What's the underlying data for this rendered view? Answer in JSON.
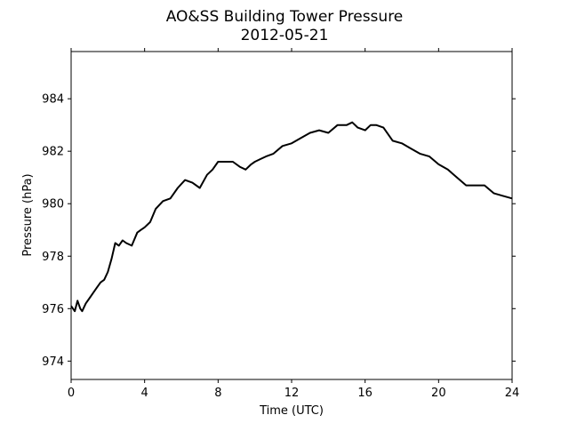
{
  "chart_data": {
    "type": "line",
    "title": "AO&SS Building Tower Pressure",
    "subtitle": "2012-05-21",
    "xlabel": "Time (UTC)",
    "ylabel": "Pressure (hPa)",
    "xlim": [
      0,
      24
    ],
    "ylim": [
      973.3,
      985.8
    ],
    "xticks": [
      0,
      4,
      8,
      12,
      16,
      20,
      24
    ],
    "yticks": [
      974,
      976,
      978,
      980,
      982,
      984
    ],
    "grid": false,
    "legend": "none",
    "line_color": "#000000",
    "series": [
      {
        "x": [
          0.0,
          0.2,
          0.35,
          0.5,
          0.6,
          0.8,
          1.0,
          1.2,
          1.4,
          1.6,
          1.8,
          2.0,
          2.2,
          2.4,
          2.6,
          2.8,
          3.0,
          3.3,
          3.6,
          3.8,
          4.0,
          4.3,
          4.6,
          5.0,
          5.4,
          5.8,
          6.2,
          6.6,
          7.0,
          7.4,
          7.7,
          8.0,
          8.4,
          8.8,
          9.2,
          9.5,
          9.8,
          10.0,
          10.3,
          10.6,
          11.0,
          11.5,
          12.0,
          12.5,
          13.0,
          13.5,
          14.0,
          14.5,
          15.0,
          15.3,
          15.6,
          16.0,
          16.3,
          16.6,
          17.0,
          17.5,
          18.0,
          18.5,
          19.0,
          19.5,
          20.0,
          20.5,
          21.0,
          21.5,
          22.0,
          22.5,
          23.0,
          23.5,
          24.0
        ],
        "values": [
          976.1,
          975.9,
          976.3,
          976.0,
          975.9,
          976.2,
          976.4,
          976.6,
          976.8,
          977.0,
          977.1,
          977.4,
          977.9,
          978.5,
          978.4,
          978.6,
          978.5,
          978.4,
          978.9,
          979.0,
          979.1,
          979.3,
          979.8,
          980.1,
          980.2,
          980.6,
          980.9,
          980.8,
          980.6,
          981.1,
          981.3,
          981.6,
          981.6,
          981.6,
          981.4,
          981.3,
          981.5,
          981.6,
          981.7,
          981.8,
          981.9,
          982.2,
          982.3,
          982.5,
          982.7,
          982.8,
          982.7,
          983.0,
          983.0,
          983.1,
          982.9,
          982.8,
          983.0,
          983.0,
          982.9,
          982.4,
          982.3,
          982.1,
          981.9,
          981.8,
          981.5,
          981.3,
          981.0,
          980.7,
          980.7,
          980.7,
          980.4,
          980.3,
          980.2
        ]
      }
    ]
  }
}
